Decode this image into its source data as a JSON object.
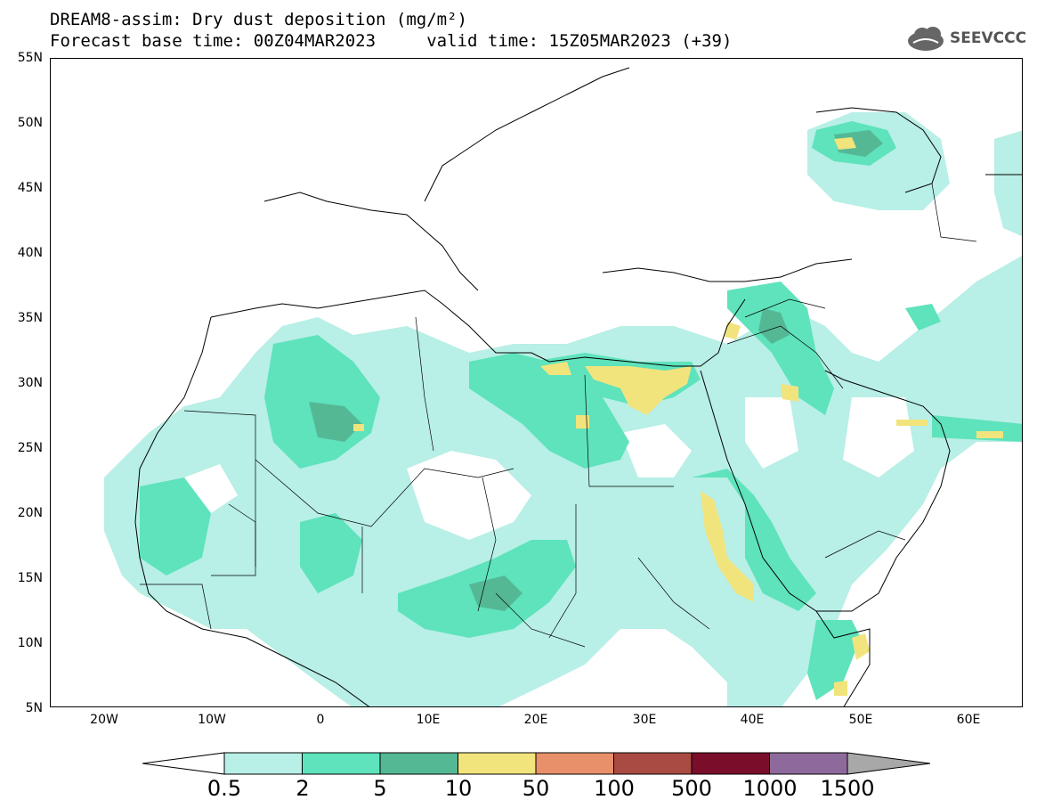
{
  "header": {
    "title_line1": "DREAM8-assim: Dry dust deposition (mg/m²)",
    "title_line2": "Forecast base time: 00Z04MAR2023     valid time: 15Z05MAR2023 (+39)",
    "logo_text": "SEEVCCC"
  },
  "map": {
    "lat_labels": [
      "55N",
      "50N",
      "45N",
      "40N",
      "35N",
      "30N",
      "25N",
      "20N",
      "15N",
      "10N",
      "5N"
    ],
    "lon_labels": [
      "20W",
      "10W",
      "0",
      "10E",
      "20E",
      "30E",
      "40E",
      "50E",
      "60E"
    ],
    "lat_range": [
      5,
      55
    ],
    "lon_range": [
      -25,
      65
    ]
  },
  "legend": {
    "units": "mg/m²",
    "levels": [
      "0.5",
      "2",
      "5",
      "10",
      "50",
      "100",
      "500",
      "1000",
      "1500"
    ],
    "colors": [
      "#b8efe6",
      "#5ee3bc",
      "#55b895",
      "#f2e47c",
      "#e8906a",
      "#a94b42",
      "#7a0e2a",
      "#8e6a9c",
      "#a8a8a8"
    ]
  }
}
